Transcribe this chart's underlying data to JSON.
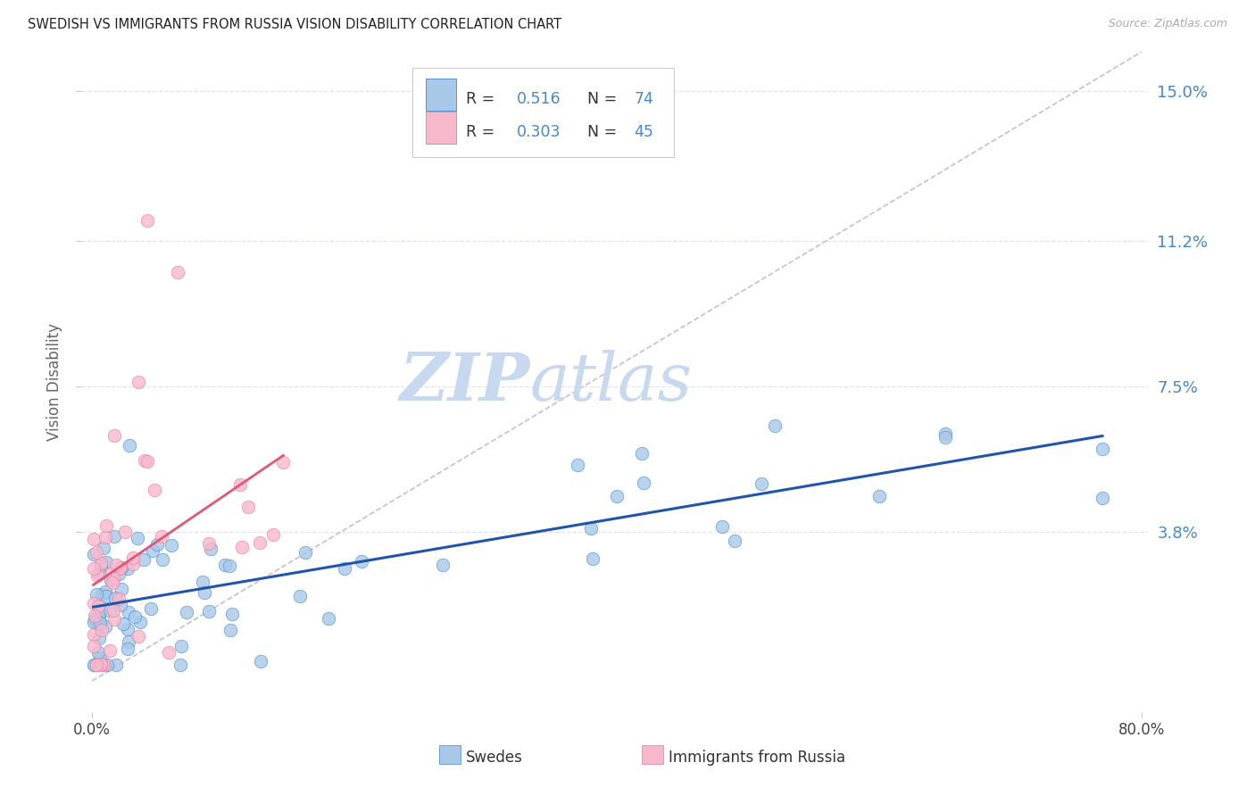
{
  "title": "SWEDISH VS IMMIGRANTS FROM RUSSIA VISION DISABILITY CORRELATION CHART",
  "source": "Source: ZipAtlas.com",
  "ylabel": "Vision Disability",
  "xmin": -0.008,
  "xmax": 0.805,
  "ymin": -0.008,
  "ymax": 0.16,
  "ytick_vals": [
    0.038,
    0.075,
    0.112,
    0.15
  ],
  "ytick_labels": [
    "3.8%",
    "7.5%",
    "11.2%",
    "15.0%"
  ],
  "xtick_vals": [
    0.0,
    0.8
  ],
  "xtick_labels": [
    "0.0%",
    "80.0%"
  ],
  "swedes_R": 0.516,
  "swedes_N": 74,
  "russia_R": 0.303,
  "russia_N": 45,
  "blue_scatter_color": "#a8c8e8",
  "blue_edge_color": "#4488cc",
  "pink_scatter_color": "#f8b8cc",
  "pink_edge_color": "#e87898",
  "blue_line_color": "#2255aa",
  "pink_line_color": "#e05878",
  "grey_dash_color": "#bbbbcc",
  "grid_color": "#e0e4f0",
  "watermark_color": "#c8d8ef",
  "background_color": "#ffffff",
  "title_color": "#222222",
  "right_tick_color": "#4488cc",
  "legend_dark_color": "#333333",
  "legend_blue_color": "#4488cc",
  "legend_red_color": "#cc3333"
}
